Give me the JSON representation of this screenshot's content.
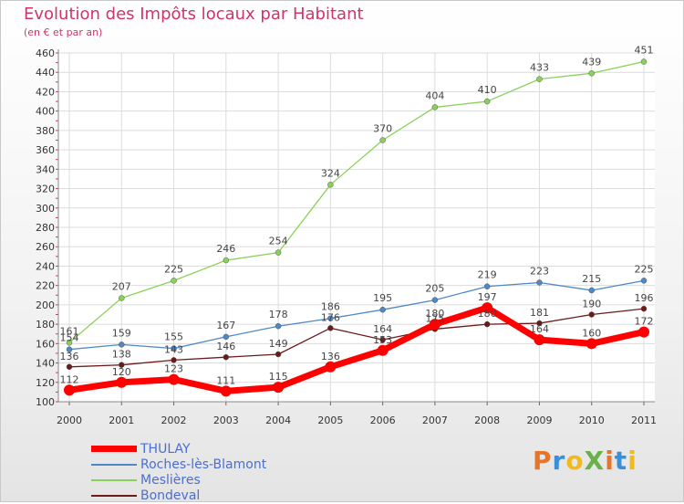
{
  "title": "Evolution des Impôts locaux par Habitant",
  "subtitle": "(en € et par an)",
  "logo": {
    "text": "ProXiti",
    "colors": [
      "#e8742a",
      "#3a8fd9",
      "#f2b91d",
      "#6ab04c",
      "#e8742a",
      "#3a8fd9",
      "#f2b91d"
    ]
  },
  "chart_data": {
    "type": "line",
    "x": [
      "2000",
      "2001",
      "2002",
      "2003",
      "2004",
      "2005",
      "2006",
      "2007",
      "2008",
      "2009",
      "2010",
      "2011"
    ],
    "ylim": [
      100,
      460
    ],
    "yticks": [
      100,
      120,
      140,
      160,
      180,
      200,
      220,
      240,
      260,
      280,
      300,
      320,
      340,
      360,
      380,
      400,
      420,
      440,
      460
    ],
    "grid": true,
    "legend_position": "bottom-left",
    "series": [
      {
        "name": "THULAY",
        "color": "#ff0000",
        "values": [
          112,
          120,
          123,
          111,
          115,
          136,
          153,
          180,
          197,
          164,
          160,
          172
        ],
        "labels": [
          "112",
          "120",
          "123",
          "111",
          "115",
          "136",
          "153",
          "180",
          "197",
          "164",
          "160",
          "172"
        ]
      },
      {
        "name": "Roches-lès-Blamont",
        "color": "#4d88c8",
        "values": [
          154,
          159,
          155,
          167,
          178,
          186,
          195,
          205,
          219,
          223,
          215,
          225
        ],
        "labels": [
          "154",
          "159",
          "155",
          "167",
          "178",
          "186",
          "195",
          "205",
          "219",
          "223",
          "215",
          "225"
        ]
      },
      {
        "name": "Meslières",
        "color": "#8ad15a",
        "values": [
          161,
          207,
          225,
          246,
          254,
          324,
          370,
          404,
          410,
          433,
          439,
          451
        ],
        "labels": [
          "161",
          "207",
          "225",
          "246",
          "254",
          "324",
          "370",
          "404",
          "410",
          "433",
          "439",
          "451"
        ]
      },
      {
        "name": "Bondeval",
        "color": "#6b1a1a",
        "values": [
          136,
          138,
          143,
          146,
          149,
          176,
          164,
          175,
          180,
          181,
          190,
          196
        ],
        "labels": [
          "136",
          "138",
          "143",
          "146",
          "149",
          "176",
          "164",
          "175",
          "180",
          "181",
          "190",
          "196"
        ]
      }
    ]
  }
}
